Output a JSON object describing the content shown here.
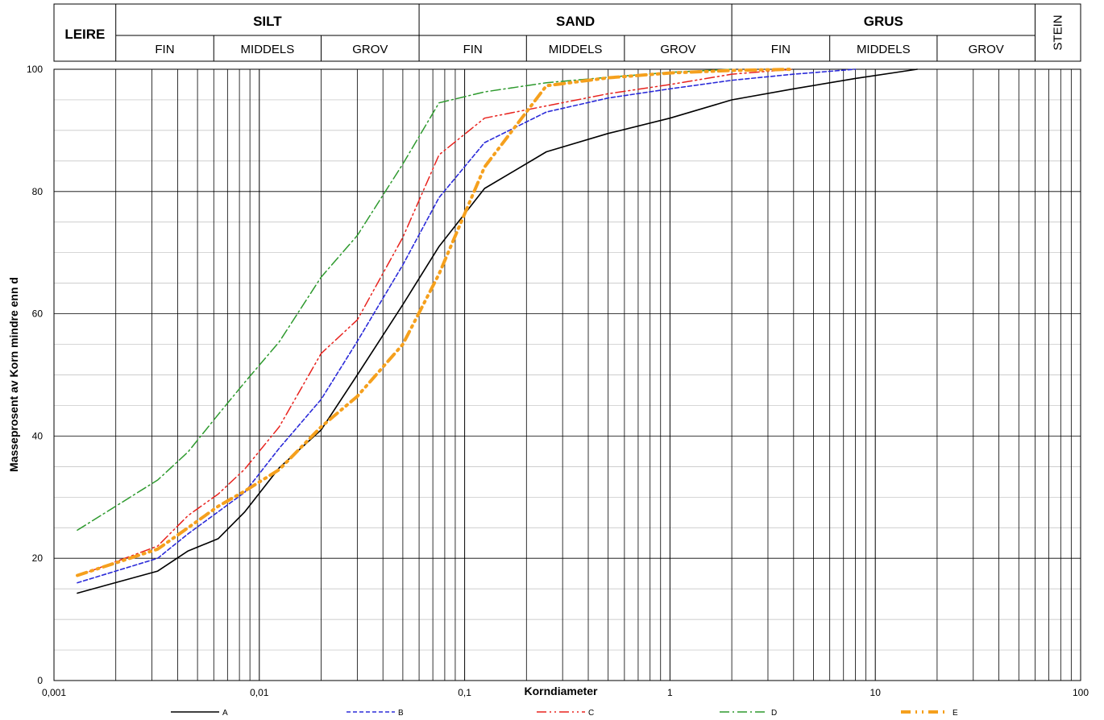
{
  "header": {
    "groups": [
      {
        "label": "LEIRE"
      },
      {
        "label": "SILT",
        "subs": [
          "FIN",
          "MIDDELS",
          "GROV"
        ]
      },
      {
        "label": "SAND",
        "subs": [
          "FIN",
          "MIDDELS",
          "GROV"
        ]
      },
      {
        "label": "GRUS",
        "subs": [
          "FIN",
          "MIDDELS",
          "GROV"
        ]
      },
      {
        "label": "STEIN"
      }
    ]
  },
  "chart_data": {
    "type": "line",
    "xscale": "log",
    "xlim": [
      0.001,
      100
    ],
    "ylim": [
      0,
      100
    ],
    "xlabel": "Korndiameter",
    "ylabel": "Masseprosent av Korn mindre enn d",
    "x_ticks": [
      "0,001",
      "0,01",
      "0,1",
      "1",
      "10",
      "100"
    ],
    "y_ticks": [
      "0",
      "20",
      "40",
      "60",
      "80",
      "100"
    ],
    "grid": true,
    "legend_position": "bottom",
    "series": [
      {
        "name": "A",
        "color": "#000000",
        "dash": "",
        "x": [
          0.0013,
          0.0032,
          0.0045,
          0.0063,
          0.0085,
          0.0125,
          0.02,
          0.03,
          0.05,
          0.075,
          0.125,
          0.25,
          0.5,
          1,
          2,
          4,
          8,
          16
        ],
        "y": [
          14.3,
          17.9,
          21.2,
          23.2,
          27.6,
          34.8,
          41.0,
          50.0,
          61.5,
          71.0,
          80.5,
          86.5,
          89.5,
          92.0,
          95.0,
          96.8,
          98.5,
          100
        ]
      },
      {
        "name": "B",
        "color": "#2b2bd9",
        "dash": "",
        "x": [
          0.0013,
          0.0032,
          0.0045,
          0.0063,
          0.0085,
          0.0125,
          0.02,
          0.03,
          0.05,
          0.075,
          0.125,
          0.25,
          0.5,
          1,
          2,
          4,
          8
        ],
        "y": [
          16.0,
          20.0,
          24.0,
          27.6,
          30.8,
          38.0,
          46.0,
          55.5,
          68.0,
          79.0,
          88.0,
          93.0,
          95.3,
          96.8,
          98.2,
          99.2,
          100
        ]
      },
      {
        "name": "C",
        "color": "#e8231e",
        "dash": "",
        "x": [
          0.0013,
          0.0032,
          0.0045,
          0.0063,
          0.0085,
          0.0125,
          0.02,
          0.03,
          0.05,
          0.075,
          0.125,
          0.25,
          0.5,
          1,
          2,
          4
        ],
        "y": [
          17.1,
          22.0,
          27.0,
          30.5,
          34.6,
          41.5,
          53.5,
          59.0,
          72.5,
          86.0,
          92.0,
          94.0,
          96.0,
          97.5,
          99.2,
          100
        ]
      },
      {
        "name": "D",
        "color": "#2e9a2e",
        "dash": "",
        "x": [
          0.0013,
          0.0032,
          0.0045,
          0.0063,
          0.0085,
          0.0125,
          0.02,
          0.03,
          0.05,
          0.075,
          0.125,
          0.25,
          0.5,
          1,
          2
        ],
        "y": [
          24.6,
          32.8,
          37.4,
          43.5,
          48.8,
          55.4,
          66.0,
          72.8,
          84.5,
          94.5,
          96.3,
          97.8,
          98.7,
          99.5,
          100
        ]
      },
      {
        "name": "E",
        "color": "#f5a01d",
        "dash": "",
        "x": [
          0.0013,
          0.0032,
          0.0045,
          0.0063,
          0.0085,
          0.0125,
          0.02,
          0.03,
          0.05,
          0.075,
          0.125,
          0.25,
          0.5,
          1,
          2,
          4
        ],
        "y": [
          17.2,
          21.5,
          25.0,
          28.5,
          31.0,
          34.5,
          41.5,
          46.5,
          55.0,
          66.5,
          84.0,
          97.3,
          98.6,
          99.4,
          99.8,
          100
        ]
      }
    ]
  }
}
